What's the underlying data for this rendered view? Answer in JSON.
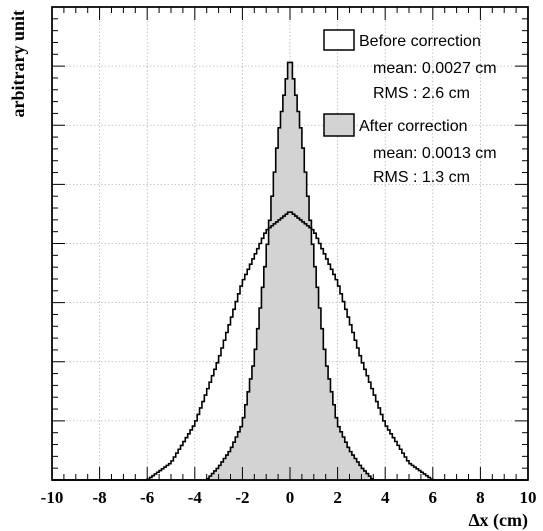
{
  "chart_data": {
    "type": "area",
    "xlabel": "∆x (cm)",
    "ylabel": "arbitrary unit",
    "xlim": [
      -10,
      10
    ],
    "ylim": [
      0,
      1.1
    ],
    "x_ticks": [
      -10,
      -8,
      -6,
      -4,
      -2,
      0,
      2,
      4,
      6,
      8,
      10
    ],
    "grid": true,
    "legend_position": "top-right",
    "series": [
      {
        "name": "Before correction",
        "mean_text": "mean: 0.0027 cm",
        "rms_text": "RMS : 2.6 cm",
        "sigma": 2.6,
        "style": "line",
        "color": "#000000",
        "x": [
          -6.0,
          -5.0,
          -4.0,
          -3.0,
          -2.0,
          -1.0,
          0.0,
          1.0,
          2.0,
          3.0,
          4.0,
          5.0,
          6.0
        ],
        "values": [
          0.0,
          0.04,
          0.13,
          0.28,
          0.46,
          0.58,
          0.625,
          0.58,
          0.46,
          0.28,
          0.13,
          0.04,
          0.0
        ]
      },
      {
        "name": "After correction",
        "mean_text": "mean: 0.0013 cm",
        "rms_text": "RMS : 1.3 cm",
        "sigma": 1.3,
        "style": "filled",
        "color": "#d3d3d3",
        "x": [
          -3.5,
          -3.0,
          -2.5,
          -2.0,
          -1.5,
          -1.0,
          -0.5,
          0.0,
          0.5,
          1.0,
          1.5,
          2.0,
          2.5,
          3.0,
          3.5
        ],
        "values": [
          0.0,
          0.03,
          0.07,
          0.13,
          0.28,
          0.52,
          0.8,
          0.99,
          0.8,
          0.52,
          0.28,
          0.13,
          0.07,
          0.03,
          0.0
        ]
      }
    ]
  }
}
